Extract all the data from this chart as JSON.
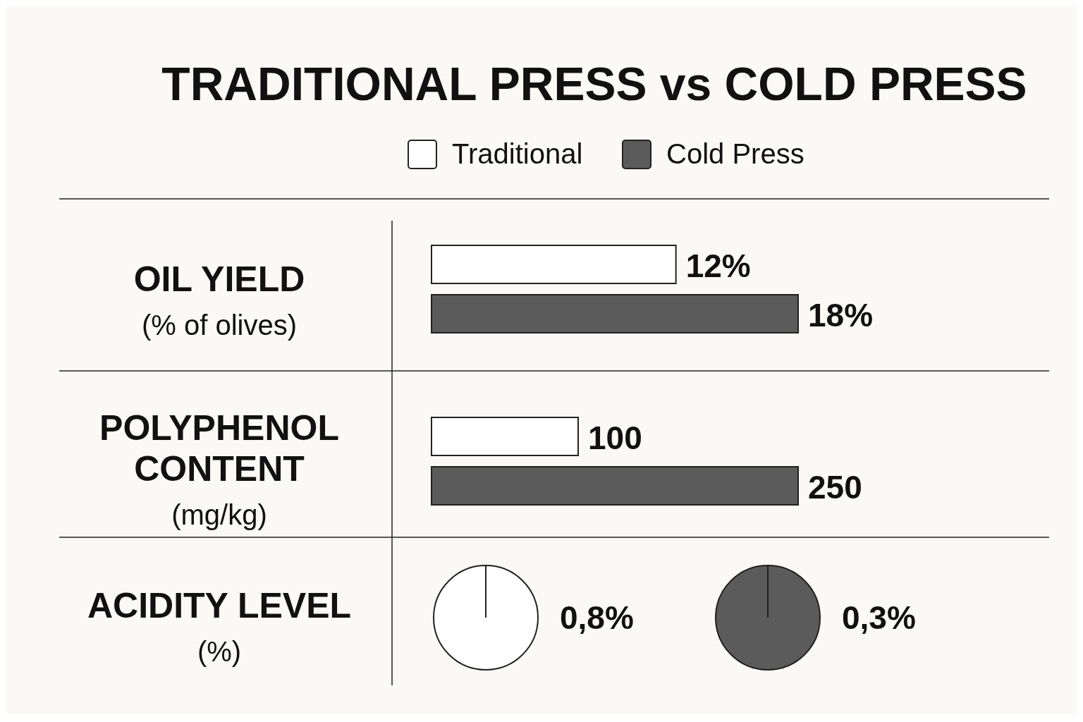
{
  "chart_data": [
    {
      "type": "bar",
      "orientation": "horizontal",
      "title": "TRADITIONAL PRESS vs COLD PRESS",
      "legend": "top",
      "categories": [
        "OIL YIELD"
      ],
      "ylabel": "(% of olives)",
      "series": [
        {
          "name": "Traditional",
          "color": "#ffffff",
          "values": [
            12
          ],
          "value_labels": [
            "12%"
          ]
        },
        {
          "name": "Cold Press",
          "color": "#5b5b5b",
          "values": [
            18
          ],
          "value_labels": [
            "18%"
          ]
        }
      ]
    },
    {
      "type": "bar",
      "orientation": "horizontal",
      "categories": [
        "POLYPHENOL CONTENT"
      ],
      "ylabel": "(mg/kg)",
      "series": [
        {
          "color": "#ffffff",
          "values": [
            100
          ],
          "value_labels": [
            "100"
          ]
        },
        {
          "color": "#5b5b5b",
          "values": [
            250
          ],
          "value_labels": [
            "250"
          ]
        }
      ]
    },
    {
      "type": "other",
      "categories": [
        "ACIDITY LEVEL"
      ],
      "ylabel": "(%)",
      "series": [
        {
          "color": "#ffffff",
          "values": [
            0.8
          ],
          "value_labels": [
            "0,8%"
          ]
        },
        {
          "color": "#5b5b5b",
          "values": [
            0.3
          ],
          "value_labels": [
            "0,3%"
          ]
        }
      ]
    }
  ]
}
